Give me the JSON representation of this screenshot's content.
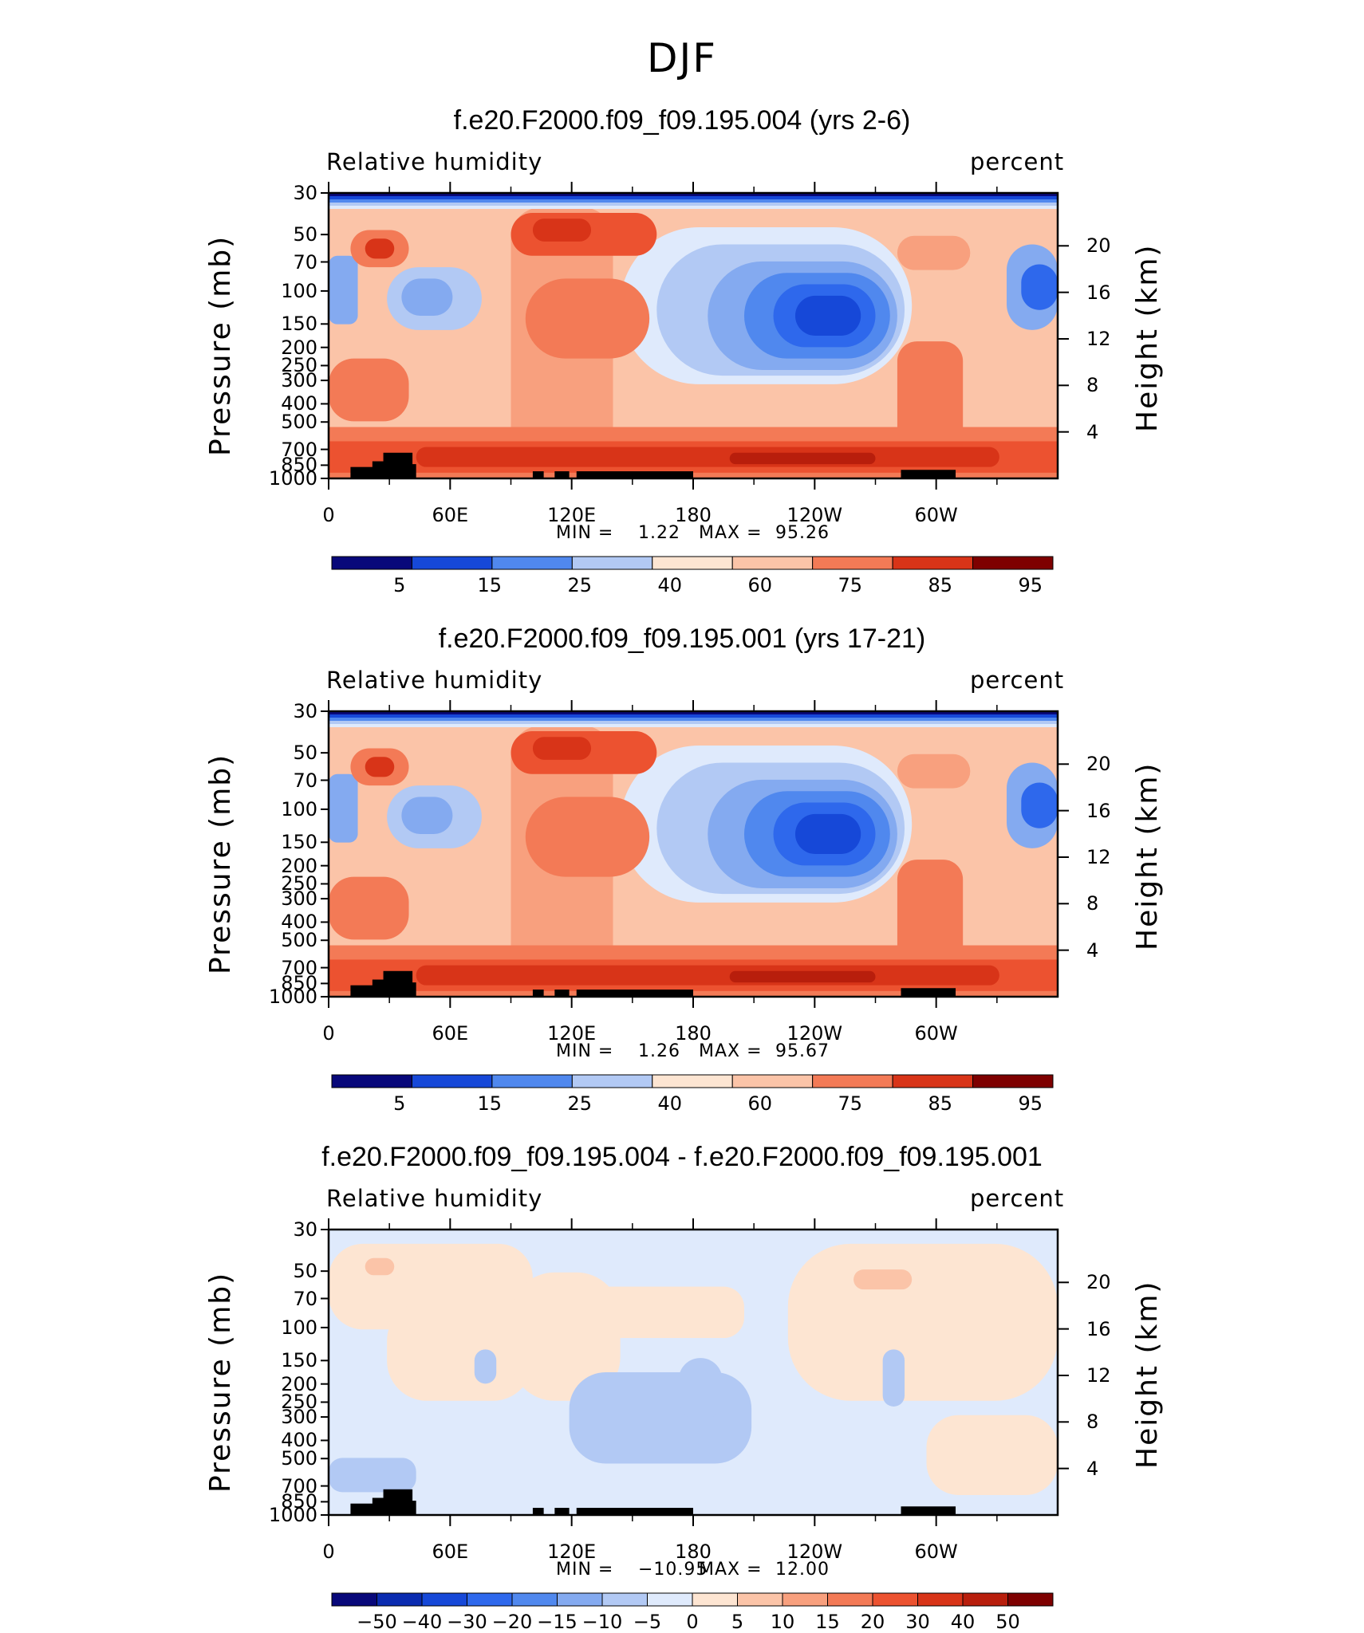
{
  "page_title": "DJF",
  "colors": {
    "seq": [
      "#08087a",
      "#0a2bb0",
      "#1648d8",
      "#2e68ec",
      "#5088ee",
      "#84aaf0",
      "#b2c9f4",
      "#dfeafc",
      "#fde5d2",
      "#fbc4a8",
      "#f8a07e",
      "#f37a56",
      "#ec5230",
      "#d83418",
      "#b81e0c",
      "#7e0000"
    ]
  },
  "chart_data": [
    {
      "type": "heatmap",
      "title": "f.e20.F2000.f09_f09.195.004 (yrs 2-6)",
      "subtitle_left": "Relative humidity",
      "subtitle_right": "percent",
      "ylabel": "Pressure (mb)",
      "ylabel2": "Height (km)",
      "pressure_ticks": [
        "30",
        "50",
        "70",
        "100",
        "150",
        "200",
        "250",
        "300",
        "400",
        "500",
        "700",
        "850",
        "1000"
      ],
      "height_ticks": [
        "20",
        "16",
        "12",
        "8",
        "4"
      ],
      "lon_ticks": [
        "0",
        "60E",
        "120E",
        "180",
        "120W",
        "60W"
      ],
      "min_label": "MIN =",
      "min_value": "1.22",
      "max_label": "MAX =",
      "max_value": "95.26",
      "levels": [
        "5",
        "15",
        "25",
        "40",
        "60",
        "75",
        "85",
        "95"
      ],
      "palette": "seq"
    },
    {
      "type": "heatmap",
      "title": "f.e20.F2000.f09_f09.195.001 (yrs 17-21)",
      "subtitle_left": "Relative humidity",
      "subtitle_right": "percent",
      "ylabel": "Pressure (mb)",
      "ylabel2": "Height (km)",
      "pressure_ticks": [
        "30",
        "50",
        "70",
        "100",
        "150",
        "200",
        "250",
        "300",
        "400",
        "500",
        "700",
        "850",
        "1000"
      ],
      "height_ticks": [
        "20",
        "16",
        "12",
        "8",
        "4"
      ],
      "lon_ticks": [
        "0",
        "60E",
        "120E",
        "180",
        "120W",
        "60W"
      ],
      "min_label": "MIN =",
      "min_value": "1.26",
      "max_label": "MAX =",
      "max_value": "95.67",
      "levels": [
        "5",
        "15",
        "25",
        "40",
        "60",
        "75",
        "85",
        "95"
      ],
      "palette": "seq"
    },
    {
      "type": "heatmap",
      "title": "f.e20.F2000.f09_f09.195.004 - f.e20.F2000.f09_f09.195.001",
      "subtitle_left": "Relative humidity",
      "subtitle_right": "percent",
      "ylabel": "Pressure (mb)",
      "ylabel2": "Height (km)",
      "pressure_ticks": [
        "30",
        "50",
        "70",
        "100",
        "150",
        "200",
        "250",
        "300",
        "400",
        "500",
        "700",
        "850",
        "1000"
      ],
      "height_ticks": [
        "20",
        "16",
        "12",
        "8",
        "4"
      ],
      "lon_ticks": [
        "0",
        "60E",
        "120E",
        "180",
        "120W",
        "60W"
      ],
      "min_label": "MIN =",
      "min_value": "−10.95",
      "max_label": "MAX =",
      "max_value": "12.00",
      "levels": [
        "−50",
        "−40",
        "−30",
        "−20",
        "−15",
        "−10",
        "−5",
        "0",
        "5",
        "10",
        "15",
        "20",
        "30",
        "40",
        "50"
      ],
      "palette": "seq"
    }
  ]
}
